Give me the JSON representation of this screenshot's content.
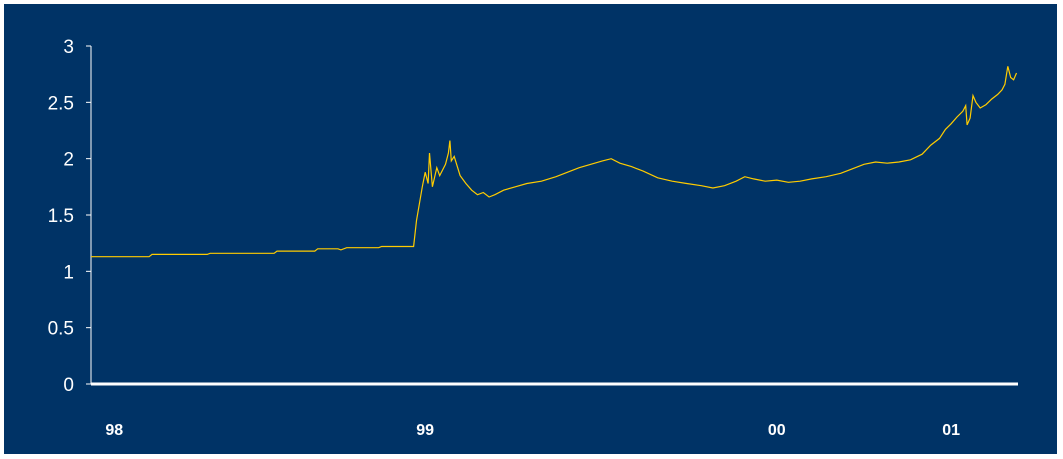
{
  "colors": {
    "background": "#003366",
    "frame": "#ffffff",
    "axis": "#ffffff",
    "series": "#FFCC00",
    "text": "#ffffff"
  },
  "chart_data": {
    "type": "line",
    "title": "",
    "xlabel": "",
    "ylabel": "",
    "xlim": [
      1998.0,
      2001.19
    ],
    "ylim": [
      0,
      3
    ],
    "grid": false,
    "legend": "none",
    "y_ticks": [
      {
        "value": 0,
        "label": "0"
      },
      {
        "value": 0.5,
        "label": "0.5"
      },
      {
        "value": 1,
        "label": "1"
      },
      {
        "value": 1.5,
        "label": "1.5"
      },
      {
        "value": 2,
        "label": "2"
      },
      {
        "value": 2.5,
        "label": "2.5"
      },
      {
        "value": 3,
        "label": "3"
      }
    ],
    "x_ticks": [
      {
        "value": 1998.08,
        "label": "98"
      },
      {
        "value": 1999.15,
        "label": "99"
      },
      {
        "value": 2000.36,
        "label": "00"
      },
      {
        "value": 2000.96,
        "label": "01"
      }
    ],
    "series": [
      {
        "values": [
          [
            1998.0,
            1.13
          ],
          [
            1998.2,
            1.13
          ],
          [
            1998.21,
            1.15
          ],
          [
            1998.4,
            1.15
          ],
          [
            1998.41,
            1.16
          ],
          [
            1998.63,
            1.16
          ],
          [
            1998.64,
            1.18
          ],
          [
            1998.77,
            1.18
          ],
          [
            1998.78,
            1.2
          ],
          [
            1998.85,
            1.2
          ],
          [
            1998.86,
            1.19
          ],
          [
            1998.88,
            1.21
          ],
          [
            1998.99,
            1.21
          ],
          [
            1999.0,
            1.22
          ],
          [
            1999.11,
            1.22
          ],
          [
            1999.12,
            1.45
          ],
          [
            1999.13,
            1.6
          ],
          [
            1999.14,
            1.75
          ],
          [
            1999.15,
            1.88
          ],
          [
            1999.16,
            1.78
          ],
          [
            1999.165,
            2.05
          ],
          [
            1999.175,
            1.75
          ],
          [
            1999.19,
            1.92
          ],
          [
            1999.2,
            1.85
          ],
          [
            1999.22,
            1.95
          ],
          [
            1999.23,
            2.05
          ],
          [
            1999.235,
            2.16
          ],
          [
            1999.24,
            1.98
          ],
          [
            1999.25,
            2.02
          ],
          [
            1999.27,
            1.85
          ],
          [
            1999.29,
            1.78
          ],
          [
            1999.31,
            1.72
          ],
          [
            1999.33,
            1.68
          ],
          [
            1999.35,
            1.7
          ],
          [
            1999.37,
            1.66
          ],
          [
            1999.39,
            1.68
          ],
          [
            1999.42,
            1.72
          ],
          [
            1999.46,
            1.75
          ],
          [
            1999.5,
            1.78
          ],
          [
            1999.55,
            1.8
          ],
          [
            1999.6,
            1.84
          ],
          [
            1999.64,
            1.88
          ],
          [
            1999.68,
            1.92
          ],
          [
            1999.72,
            1.95
          ],
          [
            1999.76,
            1.98
          ],
          [
            1999.79,
            2.0
          ],
          [
            1999.82,
            1.96
          ],
          [
            1999.86,
            1.93
          ],
          [
            1999.9,
            1.89
          ],
          [
            1999.95,
            1.83
          ],
          [
            2000.0,
            1.8
          ],
          [
            2000.05,
            1.78
          ],
          [
            2000.1,
            1.76
          ],
          [
            2000.14,
            1.74
          ],
          [
            2000.18,
            1.76
          ],
          [
            2000.22,
            1.8
          ],
          [
            2000.25,
            1.84
          ],
          [
            2000.28,
            1.82
          ],
          [
            2000.32,
            1.8
          ],
          [
            2000.36,
            1.81
          ],
          [
            2000.4,
            1.79
          ],
          [
            2000.44,
            1.8
          ],
          [
            2000.48,
            1.82
          ],
          [
            2000.53,
            1.84
          ],
          [
            2000.58,
            1.87
          ],
          [
            2000.62,
            1.91
          ],
          [
            2000.66,
            1.95
          ],
          [
            2000.7,
            1.97
          ],
          [
            2000.74,
            1.96
          ],
          [
            2000.78,
            1.97
          ],
          [
            2000.82,
            1.99
          ],
          [
            2000.86,
            2.04
          ],
          [
            2000.89,
            2.12
          ],
          [
            2000.92,
            2.18
          ],
          [
            2000.94,
            2.26
          ],
          [
            2000.96,
            2.31
          ],
          [
            2000.98,
            2.37
          ],
          [
            2001.0,
            2.42
          ],
          [
            2001.01,
            2.47
          ],
          [
            2001.015,
            2.3
          ],
          [
            2001.025,
            2.36
          ],
          [
            2001.035,
            2.56
          ],
          [
            2001.045,
            2.5
          ],
          [
            2001.06,
            2.45
          ],
          [
            2001.08,
            2.48
          ],
          [
            2001.1,
            2.53
          ],
          [
            2001.12,
            2.57
          ],
          [
            2001.135,
            2.61
          ],
          [
            2001.145,
            2.66
          ],
          [
            2001.155,
            2.82
          ],
          [
            2001.165,
            2.72
          ],
          [
            2001.175,
            2.7
          ],
          [
            2001.185,
            2.76
          ]
        ]
      }
    ]
  }
}
